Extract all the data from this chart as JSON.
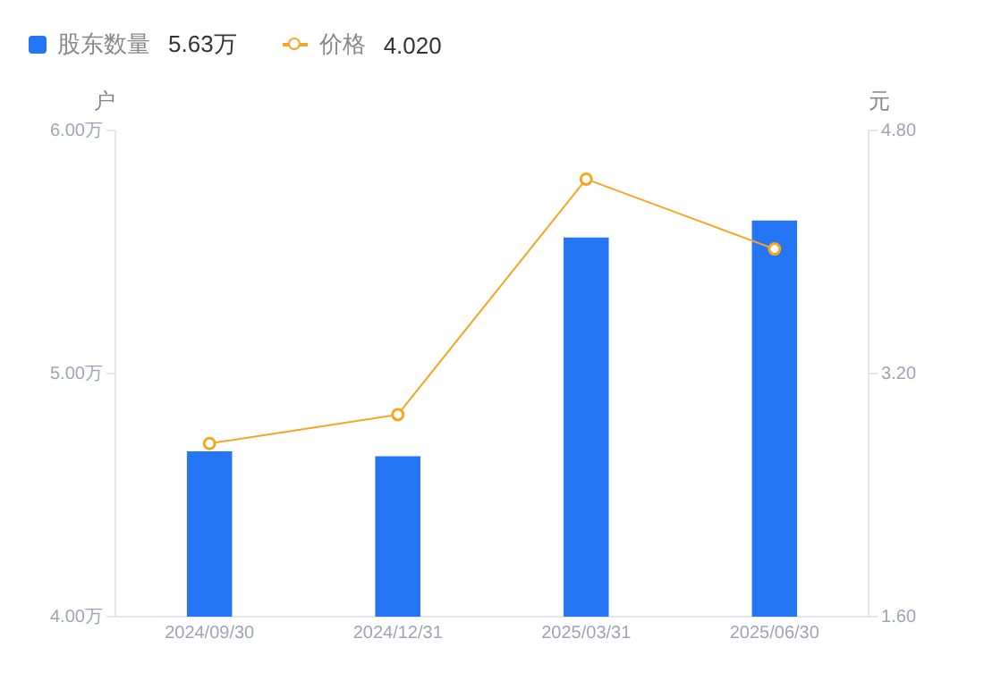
{
  "chart_data": {
    "type": "bar",
    "categories": [
      "2024/09/30",
      "2024/12/31",
      "2025/03/31",
      "2025/06/30"
    ],
    "series": [
      {
        "name": "股东数量",
        "color": "#2476f5",
        "values": [
          4.68,
          4.66,
          5.56,
          5.63
        ]
      },
      {
        "name": "价格",
        "type": "line",
        "axis": "y2",
        "color": "#f5a623",
        "values": [
          2.74,
          2.93,
          4.48,
          4.02
        ]
      }
    ],
    "ylabel": "户",
    "y2label": "元",
    "ylim": [
      4,
      6
    ],
    "yticks": [
      {
        "value": 4,
        "label": "4.00万"
      },
      {
        "value": 5,
        "label": "5.00万"
      },
      {
        "value": 6,
        "label": "6.00万"
      }
    ],
    "y2lim": [
      1.6,
      4.8
    ],
    "y2ticks": [
      {
        "value": 1.6,
        "label": "1.60"
      },
      {
        "value": 3.2,
        "label": "3.20"
      },
      {
        "value": 4.8,
        "label": "4.80"
      }
    ],
    "annotations": [
      "5.63万",
      "4.020"
    ],
    "legend": "top left",
    "grid": false,
    "marker": "circle",
    "line_style": "solid"
  }
}
